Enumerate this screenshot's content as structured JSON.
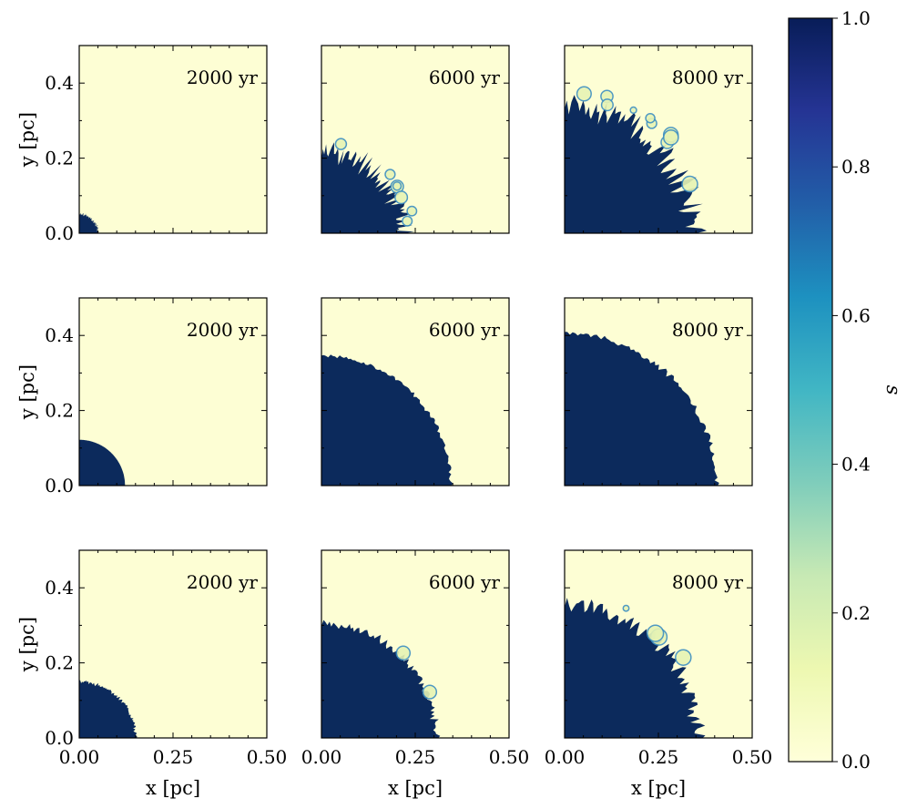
{
  "chart_data": {
    "type": "heatmap",
    "description_variable": "s",
    "colormap": {
      "name": "YlGnBu",
      "stops": [
        "#ffffd9",
        "#edf8b1",
        "#c7e9b4",
        "#7fcdbb",
        "#41b6c4",
        "#1d91c0",
        "#225ea8",
        "#253494",
        "#081d58"
      ],
      "min_color": "#fdfed4",
      "max_color": "#0c2a5c"
    },
    "colorbar": {
      "label": "s",
      "range": [
        0.0,
        1.0
      ],
      "ticks": [
        "0.0",
        "0.2",
        "0.4",
        "0.6",
        "0.8",
        "1.0"
      ]
    },
    "grid": {
      "rows": 3,
      "cols": 3
    },
    "xlabel": "x [pc]",
    "ylabel": "y [pc]",
    "xlim": [
      0.0,
      0.5
    ],
    "ylim": [
      0.0,
      0.5
    ],
    "xticks": [
      "0.00",
      "0.25",
      "0.50"
    ],
    "yticks": [
      "0.0",
      "0.2",
      "0.4"
    ],
    "panels": [
      {
        "row": 0,
        "col": 0,
        "label": "2000 yr",
        "radius_pc": 0.05,
        "roughness": 0.004,
        "plumes": 0
      },
      {
        "row": 0,
        "col": 1,
        "label": "6000 yr",
        "radius_pc": 0.215,
        "roughness": 0.025,
        "plumes": 7
      },
      {
        "row": 0,
        "col": 2,
        "label": "8000 yr",
        "radius_pc": 0.34,
        "roughness": 0.03,
        "plumes": 10
      },
      {
        "row": 1,
        "col": 0,
        "label": "2000 yr",
        "radius_pc": 0.122,
        "roughness": 0.0,
        "plumes": 0
      },
      {
        "row": 1,
        "col": 1,
        "label": "6000 yr",
        "radius_pc": 0.345,
        "roughness": 0.004,
        "plumes": 0
      },
      {
        "row": 1,
        "col": 2,
        "label": "8000 yr",
        "radius_pc": 0.405,
        "roughness": 0.006,
        "plumes": 0
      },
      {
        "row": 2,
        "col": 0,
        "label": "2000 yr",
        "radius_pc": 0.15,
        "roughness": 0.004,
        "plumes": 0
      },
      {
        "row": 2,
        "col": 1,
        "label": "6000 yr",
        "radius_pc": 0.305,
        "roughness": 0.01,
        "plumes": 2
      },
      {
        "row": 2,
        "col": 2,
        "label": "8000 yr",
        "radius_pc": 0.355,
        "roughness": 0.018,
        "plumes": 4
      }
    ]
  }
}
